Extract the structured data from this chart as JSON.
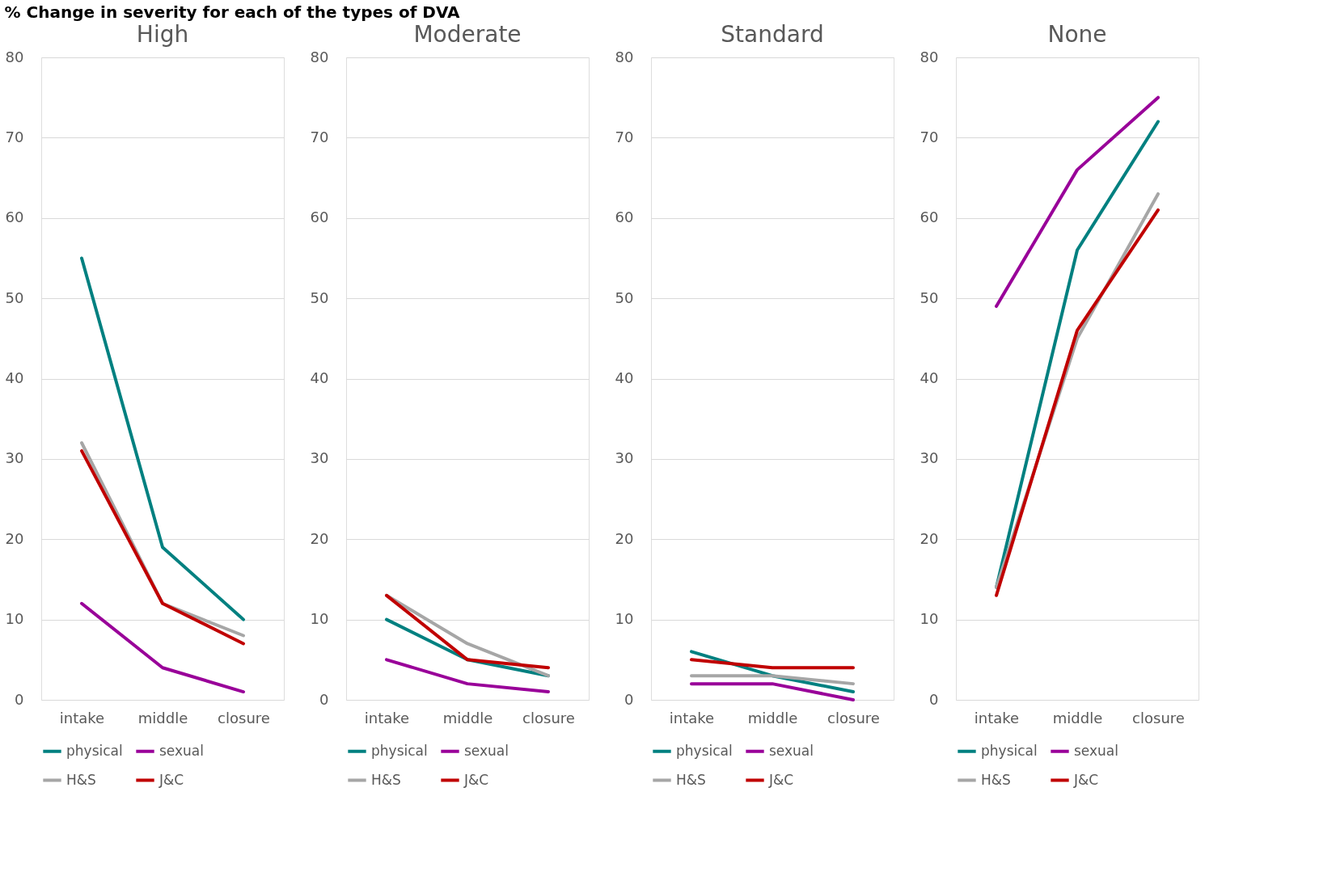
{
  "chart_data": [
    {
      "type": "line",
      "title": "High",
      "annotations": [
        "% Change in severity for each of the types of DVA"
      ],
      "categories": [
        "intake",
        "middle",
        "closure"
      ],
      "ylim": [
        0,
        80
      ],
      "yticks": [
        0,
        10,
        20,
        30,
        40,
        50,
        60,
        70,
        80
      ],
      "grid": "y",
      "legend": "bottom",
      "series": [
        {
          "name": "physical",
          "color": "#008080",
          "values": [
            55,
            19,
            10
          ]
        },
        {
          "name": "sexual",
          "color": "#990099",
          "values": [
            12,
            4,
            1
          ]
        },
        {
          "name": "H&S",
          "color": "#a6a6a6",
          "values": [
            32,
            12,
            8
          ]
        },
        {
          "name": "J&C",
          "color": "#c00000",
          "values": [
            31,
            12,
            7
          ]
        }
      ]
    },
    {
      "type": "line",
      "title": "Moderate",
      "categories": [
        "intake",
        "middle",
        "closure"
      ],
      "ylim": [
        0,
        80
      ],
      "yticks": [
        0,
        10,
        20,
        30,
        40,
        50,
        60,
        70,
        80
      ],
      "grid": "y",
      "legend": "bottom",
      "series": [
        {
          "name": "physical",
          "color": "#008080",
          "values": [
            10,
            5,
            3
          ]
        },
        {
          "name": "sexual",
          "color": "#990099",
          "values": [
            5,
            2,
            1
          ]
        },
        {
          "name": "H&S",
          "color": "#a6a6a6",
          "values": [
            13,
            7,
            3
          ]
        },
        {
          "name": "J&C",
          "color": "#c00000",
          "values": [
            13,
            5,
            4
          ]
        }
      ]
    },
    {
      "type": "line",
      "title": "Standard",
      "categories": [
        "intake",
        "middle",
        "closure"
      ],
      "ylim": [
        0,
        80
      ],
      "yticks": [
        0,
        10,
        20,
        30,
        40,
        50,
        60,
        70,
        80
      ],
      "grid": "y",
      "legend": "bottom",
      "series": [
        {
          "name": "physical",
          "color": "#008080",
          "values": [
            6,
            3,
            1
          ]
        },
        {
          "name": "sexual",
          "color": "#990099",
          "values": [
            2,
            2,
            0
          ]
        },
        {
          "name": "H&S",
          "color": "#a6a6a6",
          "values": [
            3,
            3,
            2
          ]
        },
        {
          "name": "J&C",
          "color": "#c00000",
          "values": [
            5,
            4,
            4
          ]
        }
      ]
    },
    {
      "type": "line",
      "title": "None",
      "categories": [
        "intake",
        "middle",
        "closure"
      ],
      "ylim": [
        0,
        80
      ],
      "yticks": [
        0,
        10,
        20,
        30,
        40,
        50,
        60,
        70,
        80
      ],
      "grid": "y",
      "legend": "bottom",
      "series": [
        {
          "name": "physical",
          "color": "#008080",
          "values": [
            14,
            56,
            72
          ]
        },
        {
          "name": "sexual",
          "color": "#990099",
          "values": [
            49,
            66,
            75
          ]
        },
        {
          "name": "H&S",
          "color": "#a6a6a6",
          "values": [
            14,
            45,
            63
          ]
        },
        {
          "name": "J&C",
          "color": "#c00000",
          "values": [
            13,
            46,
            61
          ]
        }
      ]
    }
  ]
}
